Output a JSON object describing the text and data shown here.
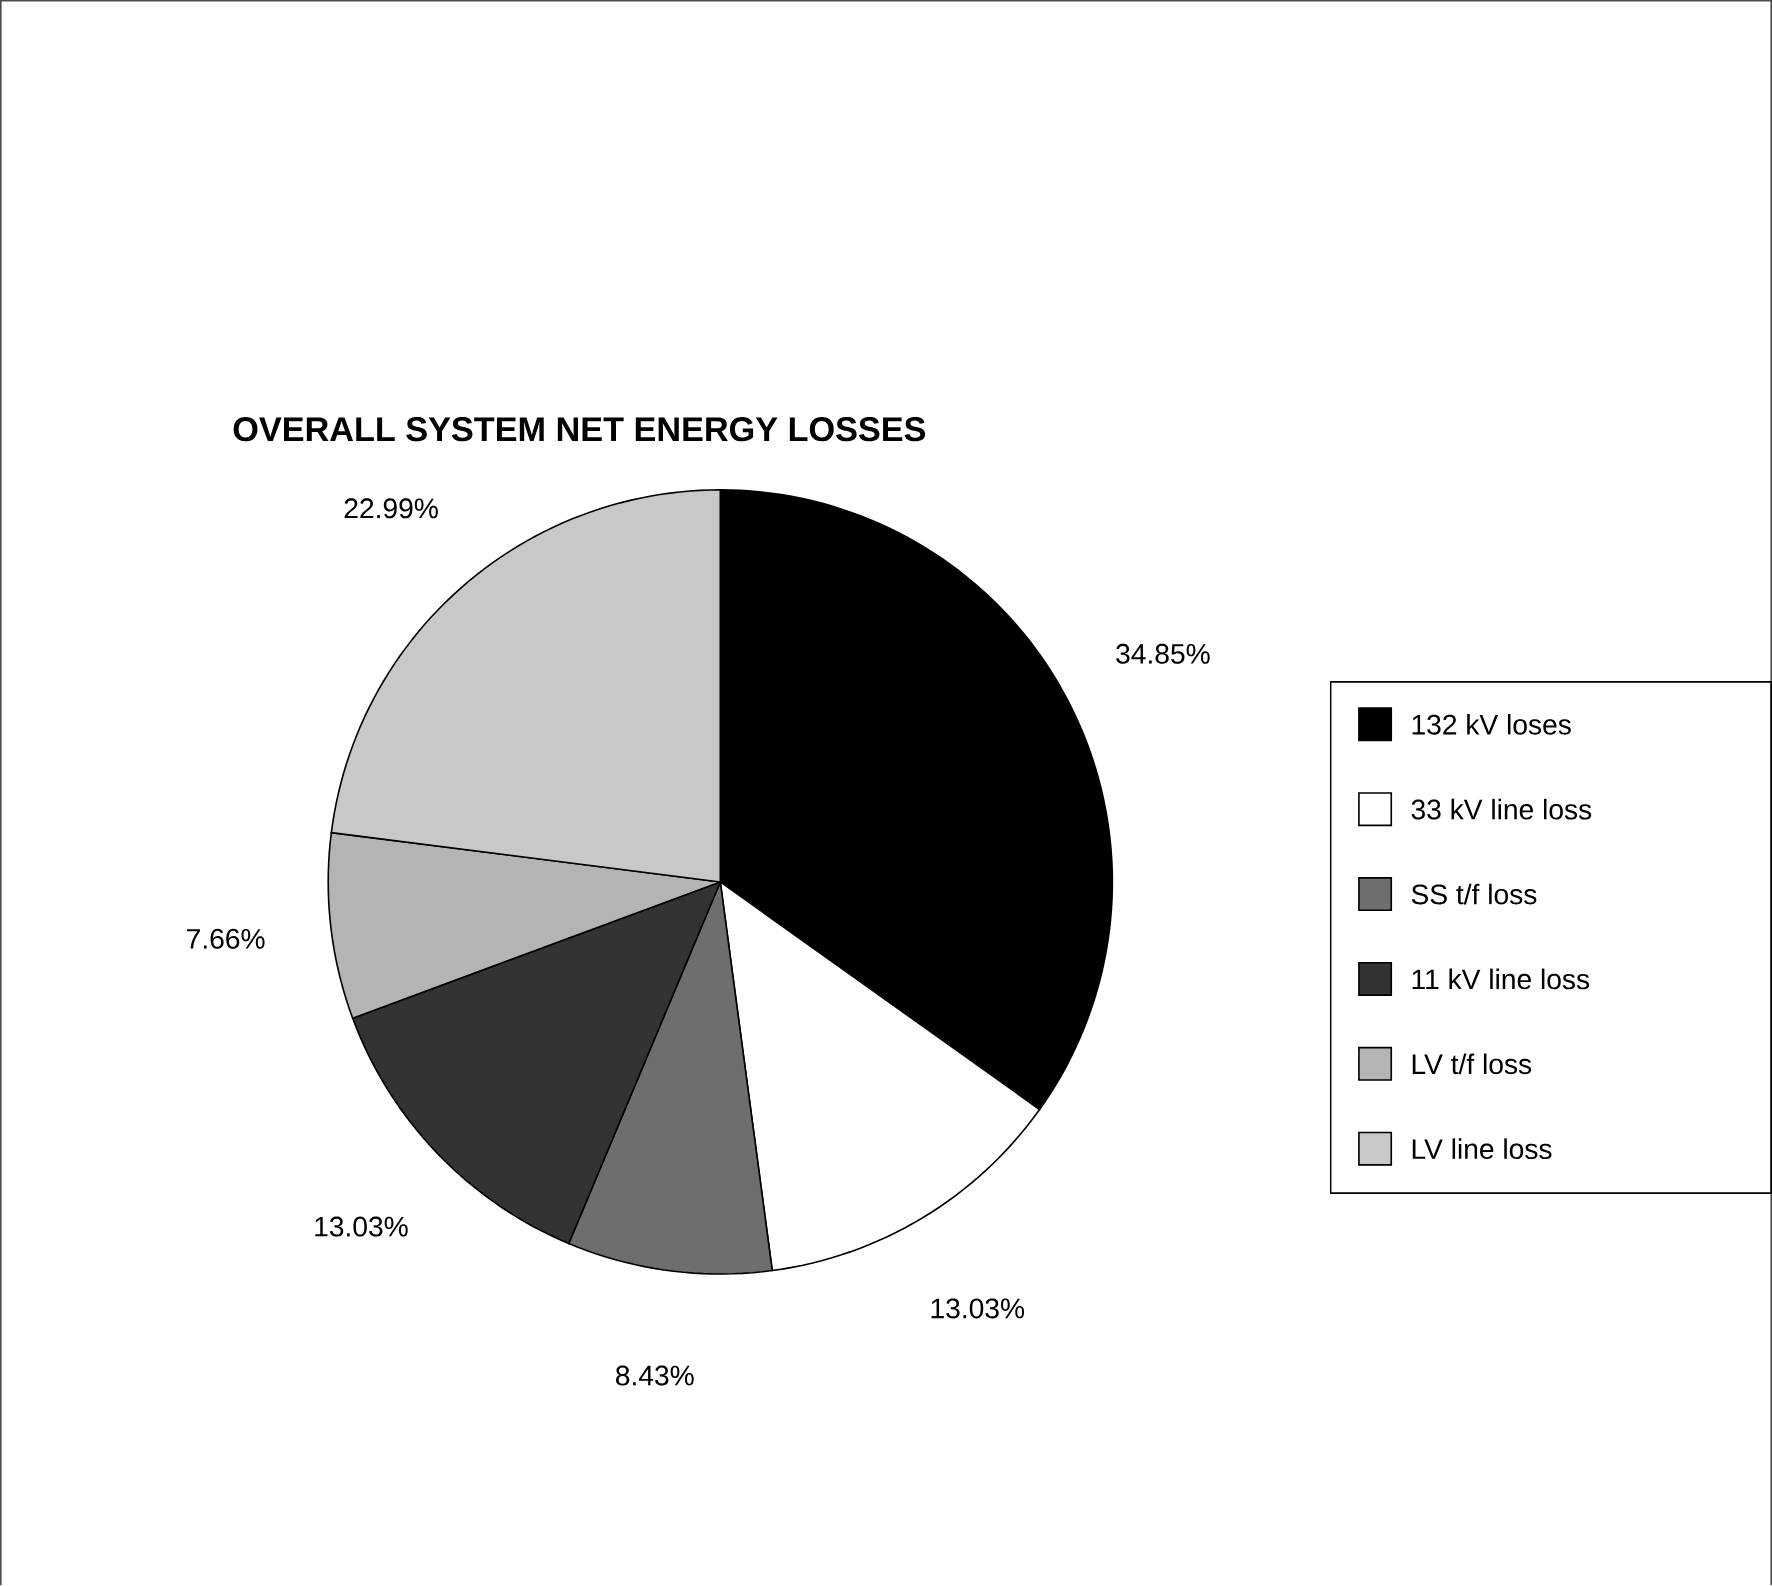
{
  "chart_data": {
    "type": "pie",
    "title": "OVERALL SYSTEM NET ENERGY LOSSES",
    "categories": [
      "132 kV loses",
      "33 kV line loss",
      "SS t/f loss",
      "11 kV line loss",
      "LV t/f loss",
      "LV line loss"
    ],
    "values": [
      34.85,
      13.03,
      8.43,
      13.03,
      7.66,
      22.99
    ],
    "value_labels": [
      "34.85%",
      "13.03%",
      "8.43%",
      "13.03%",
      "7.66%",
      "22.99%"
    ],
    "colors": [
      "#000000",
      "#ffffff",
      "#6e6e6e",
      "#333333",
      "#b4b4b4",
      "#c8c8c8"
    ],
    "legend": "right"
  }
}
